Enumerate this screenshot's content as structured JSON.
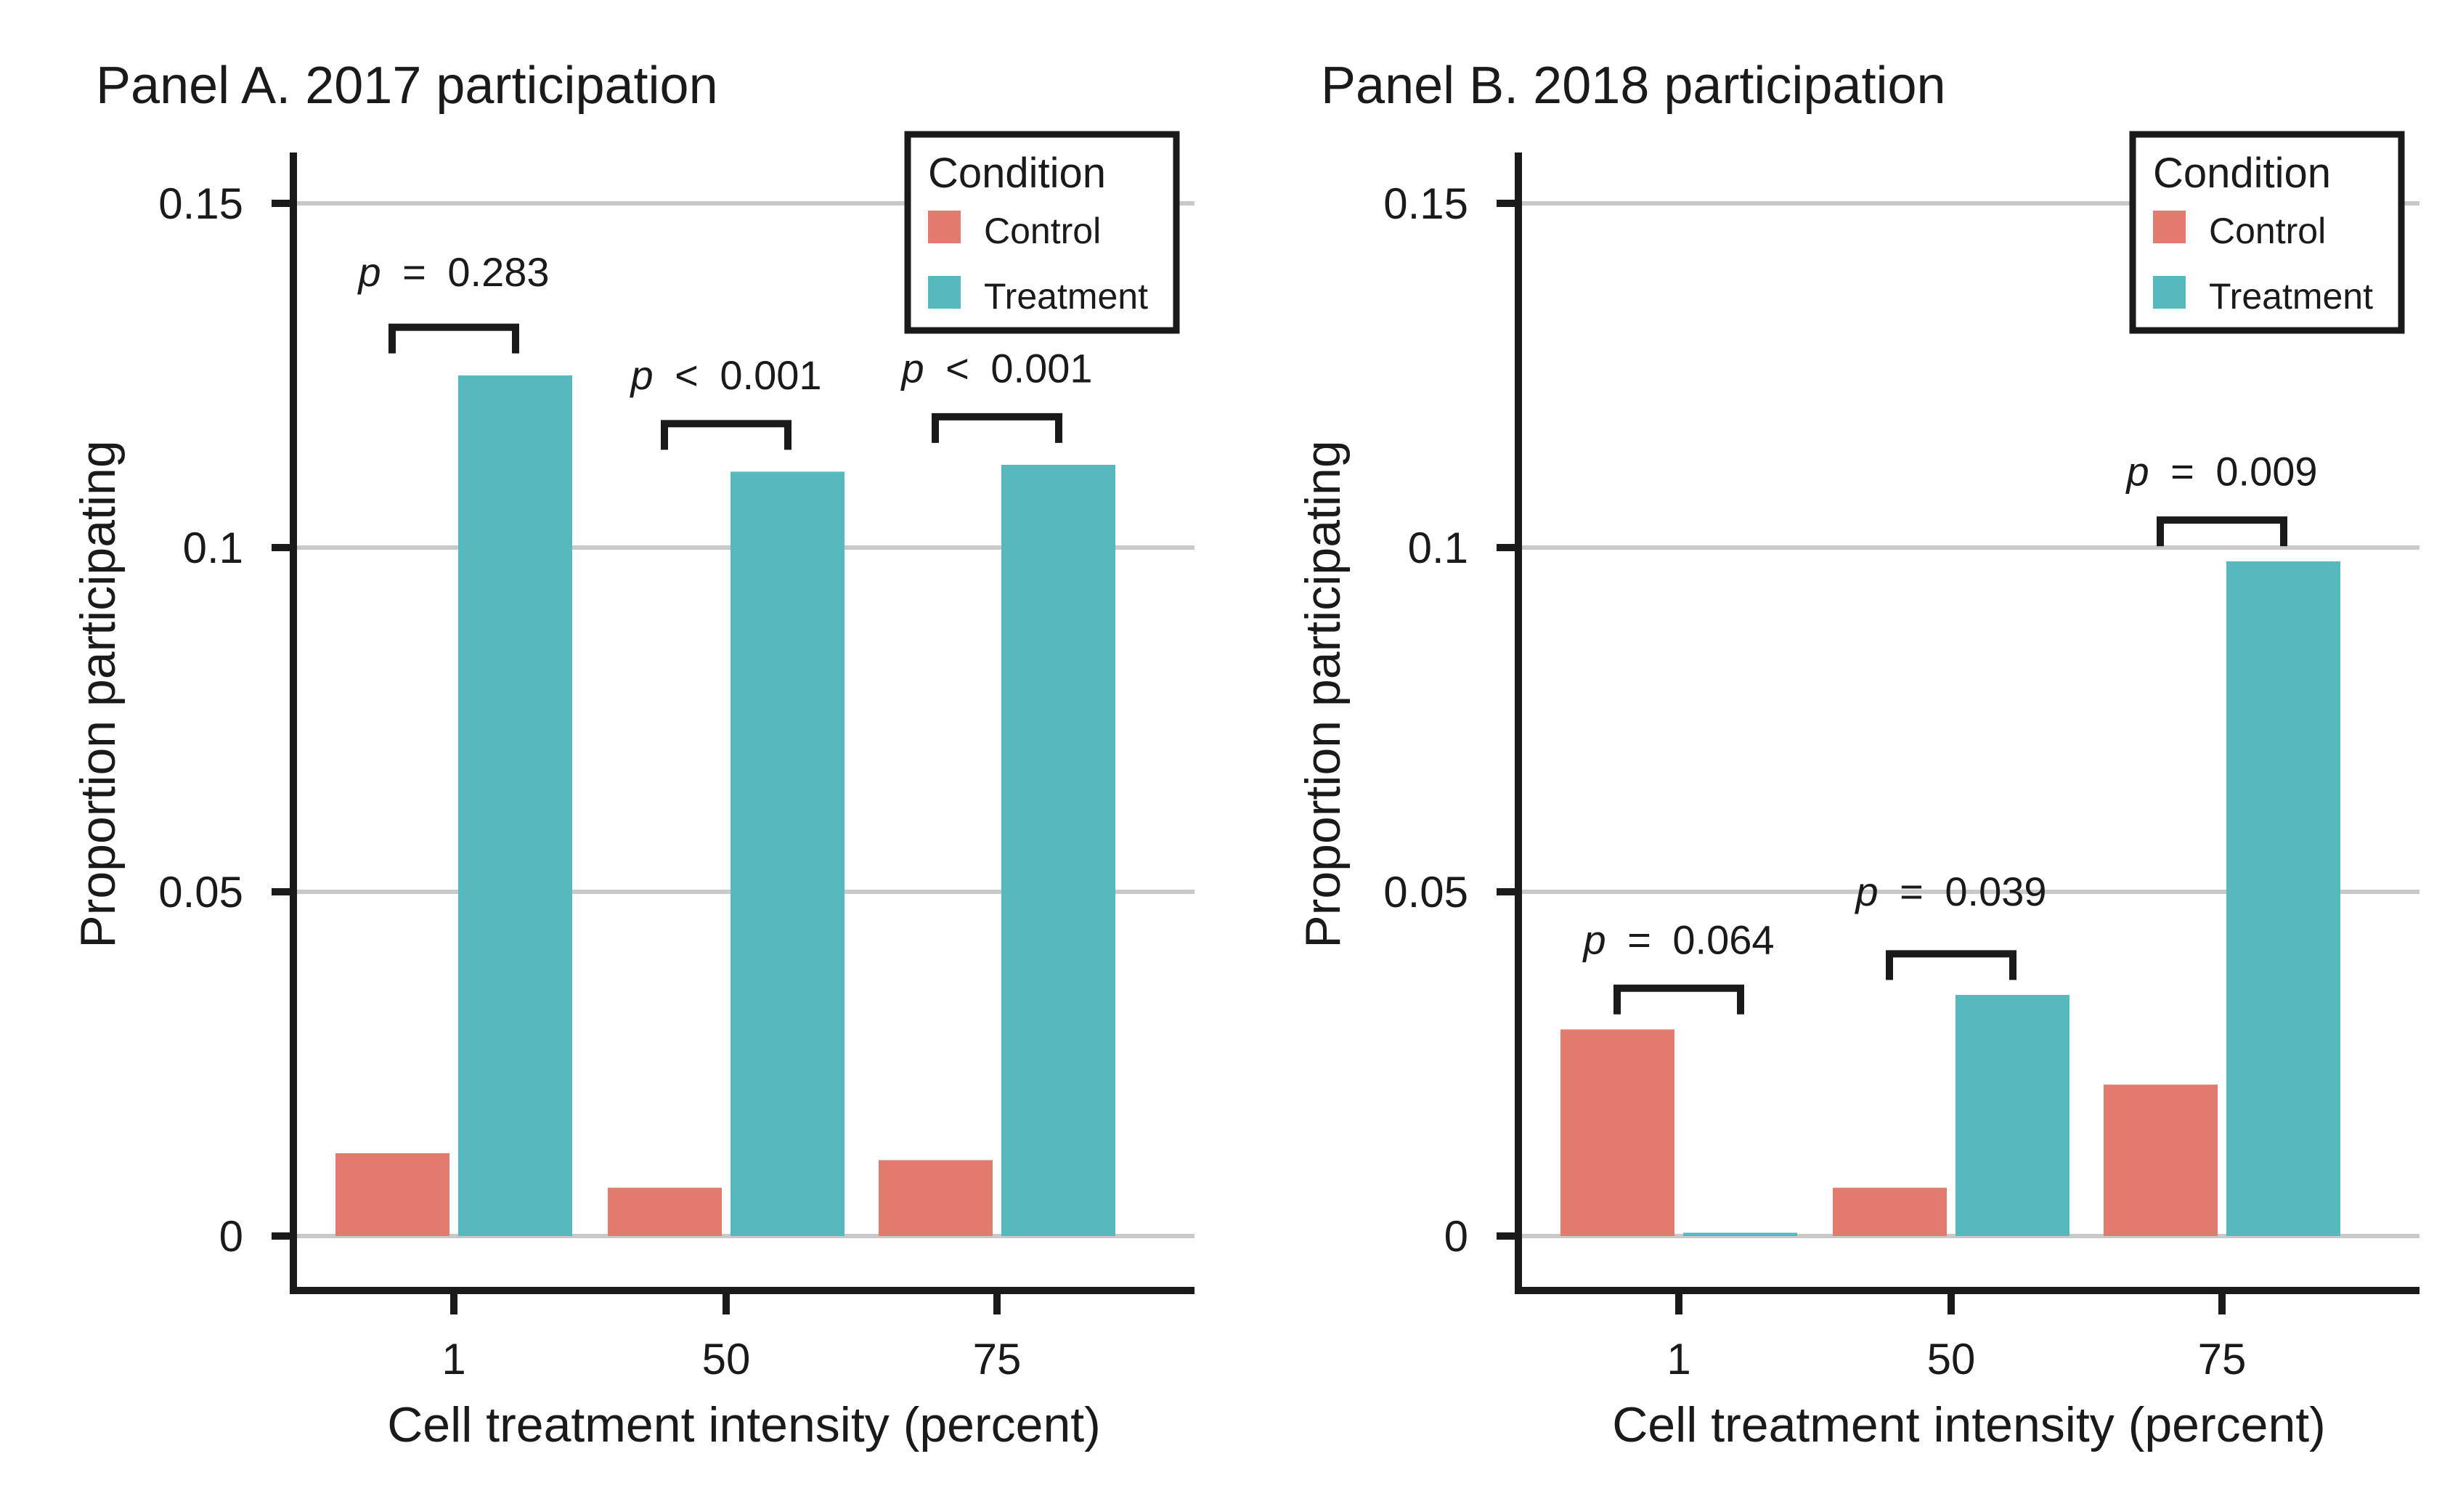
{
  "chart_data": [
    {
      "type": "bar",
      "panel_id": "A",
      "title": "Panel A. 2017 participation",
      "xlabel": "Cell treatment intensity (percent)",
      "ylabel": "Proportion participating",
      "categories": [
        "1",
        "50",
        "75"
      ],
      "series": [
        {
          "name": "Control",
          "color": "#E07B6E",
          "values": [
            0.012,
            0.007,
            0.011
          ]
        },
        {
          "name": "Treatment",
          "color": "#55B9BD",
          "values": [
            0.125,
            0.111,
            0.112
          ]
        }
      ],
      "annotations": [
        {
          "text": "p = 0.283",
          "bracket_y": 0.132,
          "label_y": 0.138
        },
        {
          "text": "p < 0.001",
          "bracket_y": 0.118,
          "label_y": 0.123
        },
        {
          "text": "p < 0.001",
          "bracket_y": 0.119,
          "label_y": 0.124
        }
      ],
      "yticks": [
        {
          "v": 0,
          "label": "0"
        },
        {
          "v": 0.05,
          "label": "0.05"
        },
        {
          "v": 0.1,
          "label": "0.1"
        },
        {
          "v": 0.15,
          "label": "0.15"
        }
      ],
      "ylim": [
        0,
        0.158
      ],
      "grid": "horizontal",
      "legend": {
        "title": "Condition",
        "position": "top-right",
        "items": [
          {
            "label": "Control",
            "color": "#E07B6E"
          },
          {
            "label": "Treatment",
            "color": "#55B9BD"
          }
        ]
      }
    },
    {
      "type": "bar",
      "panel_id": "B",
      "title": "Panel B. 2018 participation",
      "xlabel": "Cell treatment intensity (percent)",
      "ylabel": "Proportion participating",
      "categories": [
        "1",
        "50",
        "75"
      ],
      "series": [
        {
          "name": "Control",
          "color": "#E07B6E",
          "values": [
            0.03,
            0.007,
            0.022
          ]
        },
        {
          "name": "Treatment",
          "color": "#55B9BD",
          "values": [
            0.0005,
            0.035,
            0.098
          ]
        }
      ],
      "annotations": [
        {
          "text": "p = 0.064",
          "bracket_y": 0.036,
          "label_y": 0.041
        },
        {
          "text": "p = 0.039",
          "bracket_y": 0.041,
          "label_y": 0.048
        },
        {
          "text": "p = 0.009",
          "bracket_y": 0.104,
          "label_y": 0.109
        }
      ],
      "yticks": [
        {
          "v": 0,
          "label": "0"
        },
        {
          "v": 0.05,
          "label": "0.05"
        },
        {
          "v": 0.1,
          "label": "0.1"
        },
        {
          "v": 0.15,
          "label": "0.15"
        }
      ],
      "ylim": [
        0,
        0.158
      ],
      "grid": "horizontal",
      "legend": {
        "title": "Condition",
        "position": "top-right",
        "items": [
          {
            "label": "Control",
            "color": "#E07B6E"
          },
          {
            "label": "Treatment",
            "color": "#55B9BD"
          }
        ]
      }
    }
  ],
  "style_colors": {
    "gridline": "#C9C9C9",
    "axis": "#1a1a1a",
    "text": "#1a1a1a",
    "background": "#ffffff"
  }
}
